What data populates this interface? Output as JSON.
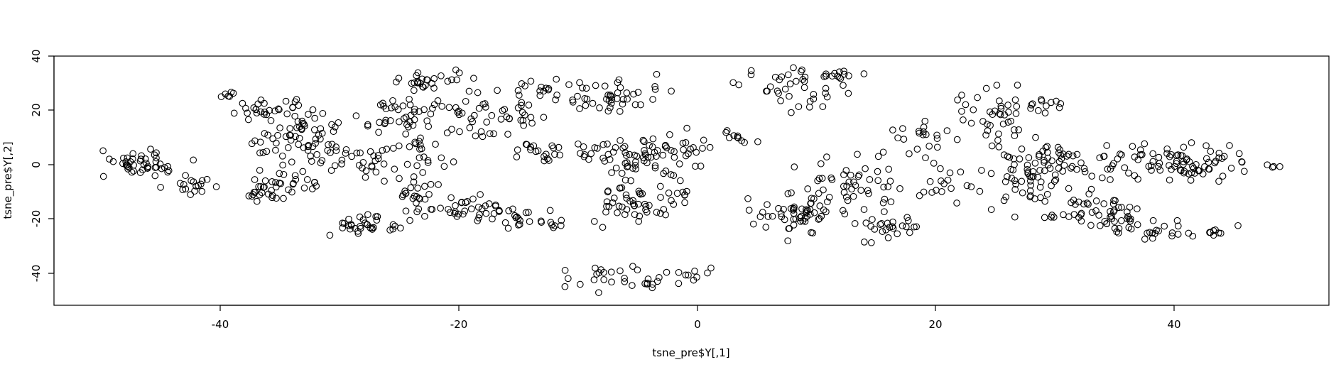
{
  "chart_data": {
    "type": "scatter",
    "title": "",
    "xlabel": "tsne_pre$Y[,1]",
    "ylabel": "tsne_pre$Y[,2]",
    "xlim": [
      -54,
      53
    ],
    "ylim": [
      -52,
      40
    ],
    "x_ticks": [
      -40,
      -20,
      0,
      20,
      40
    ],
    "y_ticks": [
      -40,
      -20,
      0,
      20,
      40
    ],
    "x_tick_labels": [
      "-40",
      "-20",
      "0",
      "20",
      "40"
    ],
    "y_tick_labels": [
      "-40",
      "-20",
      "0",
      "20",
      "40"
    ],
    "marker": "open-circle",
    "grid": false,
    "legend": "none",
    "clusters": [
      {
        "cx": -46.5,
        "cy": 0,
        "sx": 2.2,
        "sy": 4,
        "n": 45
      },
      {
        "cx": -42,
        "cy": -8,
        "sx": 2,
        "sy": 3,
        "n": 18
      },
      {
        "cx": -39.5,
        "cy": 25.5,
        "sx": 1,
        "sy": 1.2,
        "n": 6
      },
      {
        "cx": -36,
        "cy": 20,
        "sx": 2,
        "sy": 3,
        "n": 22
      },
      {
        "cx": -33,
        "cy": 8,
        "sx": 3,
        "sy": 8,
        "n": 80
      },
      {
        "cx": -35,
        "cy": -8,
        "sx": 2.5,
        "sy": 4,
        "n": 40
      },
      {
        "cx": -28,
        "cy": -22,
        "sx": 2.5,
        "sy": 3,
        "n": 32
      },
      {
        "cx": -25,
        "cy": 2,
        "sx": 3,
        "sy": 6,
        "n": 40
      },
      {
        "cx": -24,
        "cy": 18,
        "sx": 3,
        "sy": 5,
        "n": 40
      },
      {
        "cx": -22,
        "cy": 30,
        "sx": 3,
        "sy": 2.5,
        "n": 28
      },
      {
        "cx": -23,
        "cy": -10,
        "sx": 1.5,
        "sy": 6,
        "n": 22
      },
      {
        "cx": -19,
        "cy": -16,
        "sx": 4,
        "sy": 3,
        "n": 45
      },
      {
        "cx": -18,
        "cy": 18,
        "sx": 3,
        "sy": 6,
        "n": 45
      },
      {
        "cx": -12,
        "cy": 4,
        "sx": 3,
        "sy": 3,
        "n": 25
      },
      {
        "cx": -13,
        "cy": 27,
        "sx": 3,
        "sy": 4,
        "n": 22
      },
      {
        "cx": -13,
        "cy": -22,
        "sx": 3,
        "sy": 3,
        "n": 18
      },
      {
        "cx": -7,
        "cy": 25,
        "sx": 3,
        "sy": 5,
        "n": 40
      },
      {
        "cx": -6,
        "cy": 3,
        "sx": 3,
        "sy": 5,
        "n": 40
      },
      {
        "cx": -5,
        "cy": -13,
        "sx": 3,
        "sy": 6,
        "n": 55
      },
      {
        "cx": -7,
        "cy": -42,
        "sx": 3.5,
        "sy": 3,
        "n": 30
      },
      {
        "cx": 0,
        "cy": -40,
        "sx": 1.5,
        "sy": 1.5,
        "n": 8
      },
      {
        "cx": -2,
        "cy": 5,
        "sx": 2,
        "sy": 8,
        "n": 35
      },
      {
        "cx": 3,
        "cy": 10,
        "sx": 1.5,
        "sy": 2,
        "n": 10
      },
      {
        "cx": 8,
        "cy": 28,
        "sx": 3,
        "sy": 5,
        "n": 40
      },
      {
        "cx": 12,
        "cy": 33,
        "sx": 2,
        "sy": 2,
        "n": 10
      },
      {
        "cx": 8,
        "cy": -18,
        "sx": 3,
        "sy": 5,
        "n": 55
      },
      {
        "cx": 13,
        "cy": -8,
        "sx": 3,
        "sy": 8,
        "n": 50
      },
      {
        "cx": 16,
        "cy": -24,
        "sx": 2.5,
        "sy": 4,
        "n": 25
      },
      {
        "cx": 19,
        "cy": 10,
        "sx": 2.5,
        "sy": 5,
        "n": 20
      },
      {
        "cx": 21,
        "cy": -8,
        "sx": 2,
        "sy": 6,
        "n": 18
      },
      {
        "cx": 25,
        "cy": 18,
        "sx": 2.5,
        "sy": 8,
        "n": 40
      },
      {
        "cx": 27,
        "cy": -5,
        "sx": 3,
        "sy": 8,
        "n": 45
      },
      {
        "cx": 29,
        "cy": 22,
        "sx": 1.5,
        "sy": 2.5,
        "n": 12
      },
      {
        "cx": 31,
        "cy": 0,
        "sx": 3,
        "sy": 5,
        "n": 45
      },
      {
        "cx": 33,
        "cy": -18,
        "sx": 3,
        "sy": 6,
        "n": 50
      },
      {
        "cx": 38,
        "cy": 2,
        "sx": 3,
        "sy": 5,
        "n": 50
      },
      {
        "cx": 38,
        "cy": -24,
        "sx": 2,
        "sy": 3,
        "n": 25
      },
      {
        "cx": 43,
        "cy": 0,
        "sx": 2.5,
        "sy": 5,
        "n": 35
      },
      {
        "cx": 43,
        "cy": -25,
        "sx": 1.5,
        "sy": 2,
        "n": 10
      },
      {
        "cx": 48.5,
        "cy": -0.5,
        "sx": 0.8,
        "sy": 0.5,
        "n": 4
      }
    ]
  }
}
